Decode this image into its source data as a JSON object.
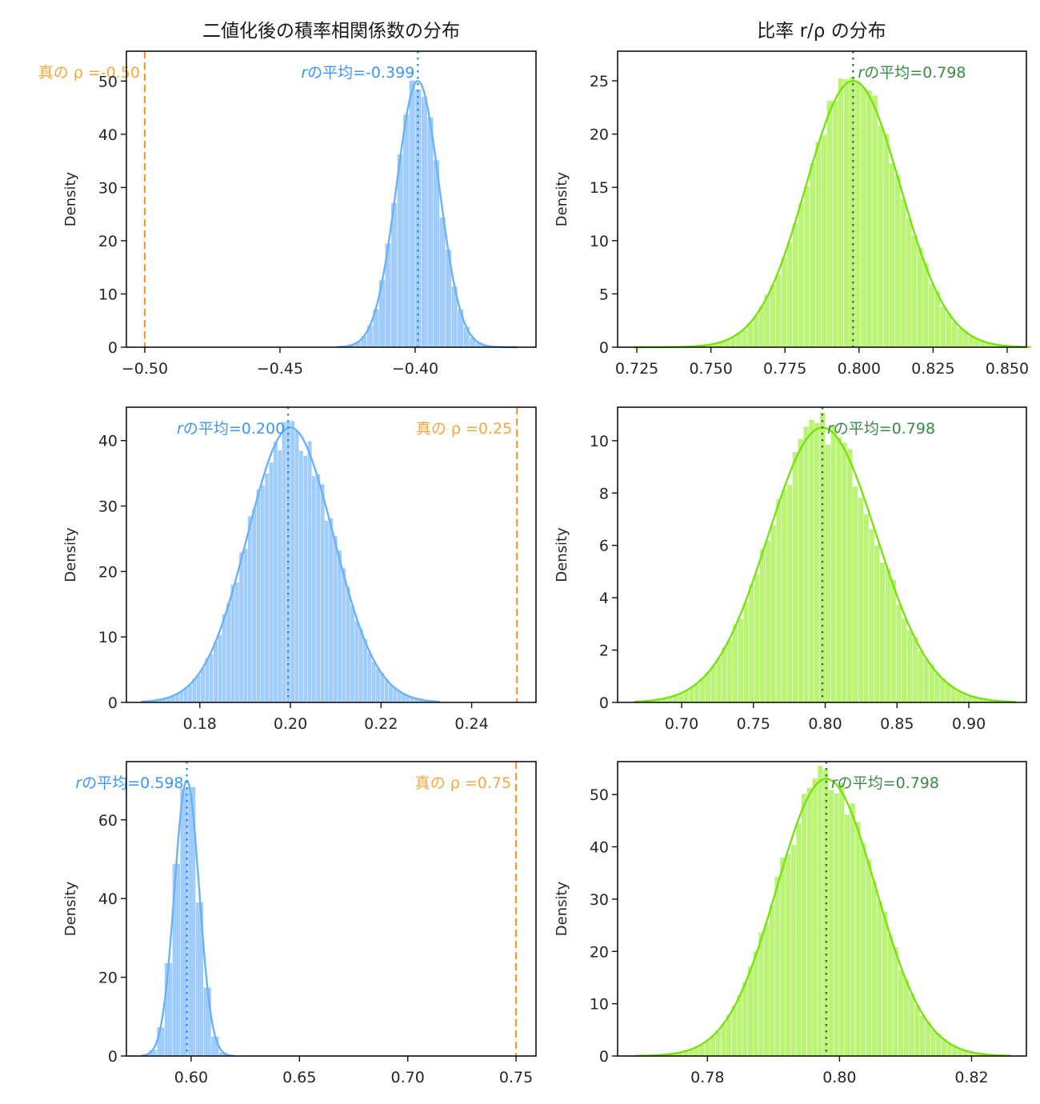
{
  "figure": {
    "column_titles": [
      "二値化後の積率相関係数の分布",
      "比率 r/ρ の分布"
    ]
  },
  "colors": {
    "r_hist_fill": "#8fc4fb",
    "r_kde_line": "#6ab2f6",
    "r_mean_line": "#2b8cf2",
    "r_mean_text": "#3d97f2",
    "true_rho_line": "#f59a2a",
    "true_rho_text": "#f7a640",
    "ratio_hist_fill": "#b3f266",
    "ratio_kde_line": "#77e30e",
    "ratio_mean_line": "#2f7a3a",
    "ratio_mean_text": "#3b8a45"
  },
  "chart_data": [
    {
      "type": "histogram",
      "panel": "row1-left",
      "title": "二値化後の積率相関係数の分布",
      "xlabel": "",
      "ylabel": "Density",
      "xlim": [
        -0.5068,
        -0.3553
      ],
      "ylim": [
        0,
        55.6
      ],
      "xticks": [
        -0.5,
        -0.45,
        -0.4
      ],
      "xtick_labels": [
        "−0.50",
        "−0.45",
        "−0.40"
      ],
      "yticks": [
        0,
        10,
        20,
        30,
        40,
        50
      ],
      "yticks_labels": [
        "0",
        "10",
        "20",
        "30",
        "40",
        "50"
      ],
      "distribution": {
        "mean": -0.399,
        "sd": 0.0079,
        "min": -0.429,
        "max": -0.362,
        "peak_density": 50
      },
      "kde": true,
      "mean_line": {
        "value": -0.399,
        "label_prefix": "r",
        "label": "の平均=-0.399",
        "label_side": "left"
      },
      "true_line": {
        "value": -0.5,
        "label": "真の ρ =-0.50",
        "label_side": "left"
      },
      "series_style": "r"
    },
    {
      "type": "histogram",
      "panel": "row1-right",
      "title": "比率 r/ρ の分布",
      "xlabel": "",
      "ylabel": "Density",
      "xlim": [
        0.7185,
        0.8565
      ],
      "ylim": [
        0,
        27.78
      ],
      "xticks": [
        0.725,
        0.75,
        0.775,
        0.8,
        0.825,
        0.85
      ],
      "xtick_labels": [
        "0.725",
        "0.750",
        "0.775",
        "0.800",
        "0.825",
        "0.850"
      ],
      "yticks": [
        0,
        5,
        10,
        15,
        20,
        25
      ],
      "yticks_labels": [
        "0",
        "5",
        "10",
        "15",
        "20",
        "25"
      ],
      "distribution": {
        "mean": 0.798,
        "sd": 0.0159,
        "min": 0.724,
        "max": 0.858,
        "peak_density": 25
      },
      "kde": true,
      "mean_line": {
        "value": 0.798,
        "label_prefix": "r",
        "label": "の平均=0.798",
        "label_side": "right"
      },
      "true_line": null,
      "series_style": "ratio"
    },
    {
      "type": "histogram",
      "panel": "row2-left",
      "title": "",
      "xlabel": "",
      "ylabel": "Density",
      "xlim": [
        0.1638,
        0.2542
      ],
      "ylim": [
        0,
        45.1
      ],
      "xticks": [
        0.18,
        0.2,
        0.22,
        0.24
      ],
      "xtick_labels": [
        "0.18",
        "0.20",
        "0.22",
        "0.24"
      ],
      "yticks": [
        0,
        10,
        20,
        30,
        40
      ],
      "yticks_labels": [
        "0",
        "10",
        "20",
        "30",
        "40"
      ],
      "distribution": {
        "mean": 0.2,
        "sd": 0.0095,
        "min": 0.167,
        "max": 0.233,
        "peak_density": 42
      },
      "kde": true,
      "mean_line": {
        "value": 0.1995,
        "label_prefix": "r",
        "label": "の平均=0.200",
        "label_side": "left"
      },
      "true_line": {
        "value": 0.25,
        "label": "真の ρ =0.25",
        "label_side": "left"
      },
      "series_style": "r"
    },
    {
      "type": "histogram",
      "panel": "row2-right",
      "title": "",
      "xlabel": "",
      "ylabel": "Density",
      "xlim": [
        0.6554,
        0.9401
      ],
      "ylim": [
        0,
        11.28
      ],
      "xticks": [
        0.7,
        0.75,
        0.8,
        0.85,
        0.9
      ],
      "xtick_labels": [
        "0.70",
        "0.75",
        "0.80",
        "0.85",
        "0.90"
      ],
      "yticks": [
        0,
        2,
        4,
        6,
        8,
        10
      ],
      "yticks_labels": [
        "0",
        "2",
        "4",
        "6",
        "8",
        "10"
      ],
      "distribution": {
        "mean": 0.798,
        "sd": 0.0378,
        "min": 0.667,
        "max": 0.933,
        "peak_density": 10.5
      },
      "kde": true,
      "mean_line": {
        "value": 0.798,
        "label_prefix": "r",
        "label": "の平均=0.798",
        "label_side": "right"
      },
      "true_line": null,
      "series_style": "ratio"
    },
    {
      "type": "histogram",
      "panel": "row3-left",
      "title": "",
      "xlabel": "",
      "ylabel": "Density",
      "xlim": [
        0.5701,
        0.7592
      ],
      "ylim": [
        0,
        74.8
      ],
      "xticks": [
        0.6,
        0.65,
        0.7,
        0.75
      ],
      "xtick_labels": [
        "0.60",
        "0.65",
        "0.70",
        "0.75"
      ],
      "yticks": [
        0,
        20,
        40,
        60
      ],
      "yticks_labels": [
        "0",
        "20",
        "40",
        "60"
      ],
      "distribution": {
        "mean": 0.598,
        "sd": 0.0057,
        "min": 0.577,
        "max": 0.62,
        "peak_density": 70
      },
      "kde": true,
      "mean_line": {
        "value": 0.598,
        "label_prefix": "r",
        "label": "の平均=0.598",
        "label_side": "left"
      },
      "true_line": {
        "value": 0.75,
        "label": "真の ρ =0.75",
        "label_side": "left"
      },
      "series_style": "r"
    },
    {
      "type": "histogram",
      "panel": "row3-right",
      "title": "",
      "xlabel": "",
      "ylabel": "Density",
      "xlim": [
        0.7664,
        0.8283
      ],
      "ylim": [
        0,
        56.3
      ],
      "xticks": [
        0.78,
        0.8,
        0.82
      ],
      "xtick_labels": [
        "0.78",
        "0.80",
        "0.82"
      ],
      "yticks": [
        0,
        10,
        20,
        30,
        40,
        50
      ],
      "yticks_labels": [
        "0",
        "10",
        "20",
        "30",
        "40",
        "50"
      ],
      "distribution": {
        "mean": 0.798,
        "sd": 0.0075,
        "min": 0.769,
        "max": 0.826,
        "peak_density": 53
      },
      "kde": true,
      "mean_line": {
        "value": 0.798,
        "label_prefix": "r",
        "label": "の平均=0.798",
        "label_side": "right"
      },
      "true_line": null,
      "series_style": "ratio"
    }
  ]
}
